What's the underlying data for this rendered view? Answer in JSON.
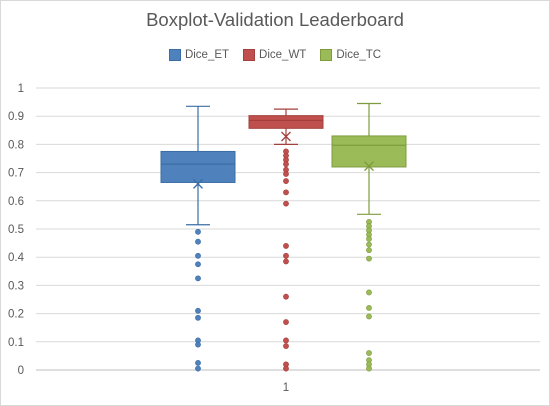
{
  "chart_data": {
    "type": "boxplot",
    "title": "Boxplot-Validation Leaderboard",
    "xlabel": "",
    "ylabel": "",
    "ylim": [
      0,
      1
    ],
    "ytick_step": 0.1,
    "categories": [
      "1"
    ],
    "grid": "horizontal",
    "legend_position": "top",
    "series": [
      {
        "name": "Dice_ET",
        "color": "#4f81bd",
        "edge": "#3a6ea5",
        "min": 0.515,
        "q1": 0.665,
        "median": 0.73,
        "q3": 0.775,
        "max": 0.935,
        "mean": 0.66,
        "outliers": [
          0.49,
          0.455,
          0.405,
          0.375,
          0.325,
          0.21,
          0.185,
          0.105,
          0.09,
          0.025,
          0.005
        ]
      },
      {
        "name": "Dice_WT",
        "color": "#c0504d",
        "edge": "#a3403d",
        "min": 0.8,
        "q1": 0.857,
        "median": 0.885,
        "q3": 0.902,
        "max": 0.925,
        "mean": 0.828,
        "outliers": [
          0.775,
          0.76,
          0.745,
          0.73,
          0.71,
          0.695,
          0.67,
          0.63,
          0.59,
          0.44,
          0.405,
          0.385,
          0.26,
          0.17,
          0.105,
          0.085,
          0.02,
          0.005
        ]
      },
      {
        "name": "Dice_TC",
        "color": "#9bbb59",
        "edge": "#7e9c3e",
        "min": 0.552,
        "q1": 0.72,
        "median": 0.797,
        "q3": 0.83,
        "max": 0.945,
        "mean": 0.723,
        "outliers": [
          0.525,
          0.51,
          0.495,
          0.48,
          0.465,
          0.445,
          0.425,
          0.395,
          0.275,
          0.22,
          0.19,
          0.06,
          0.035,
          0.02,
          0.005
        ]
      }
    ]
  }
}
